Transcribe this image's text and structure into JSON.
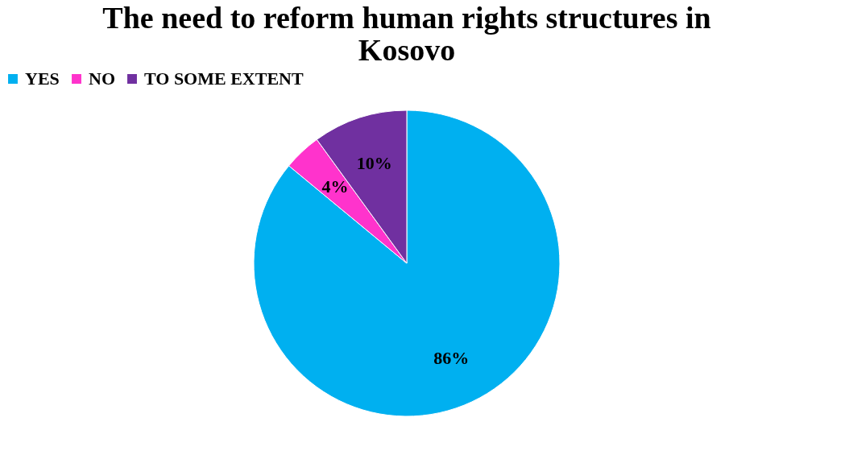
{
  "chart_data": {
    "type": "pie",
    "title": "The need to reform human rights structures in Kosovo",
    "categories": [
      "YES",
      "NO",
      "TO SOME EXTENT"
    ],
    "values": [
      86,
      4,
      10
    ],
    "colors": [
      "#00b0f0",
      "#ff33cc",
      "#7030a0"
    ],
    "value_labels": [
      "86%",
      "4%",
      "10%"
    ],
    "legend": "top"
  }
}
